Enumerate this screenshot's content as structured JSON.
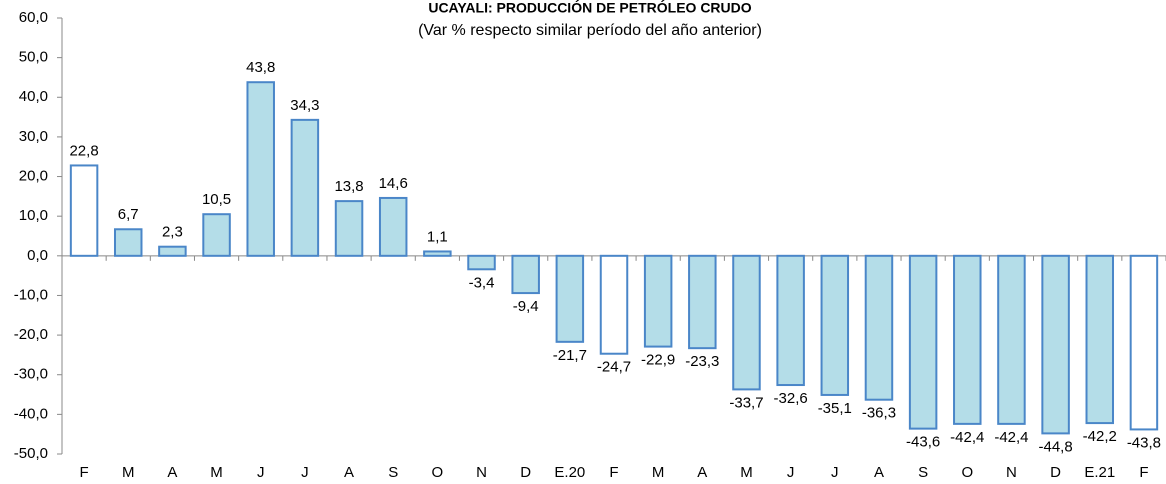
{
  "chart_data": {
    "type": "bar",
    "title": "UCAYALI: PRODUCCIÓN DE PETRÓLEO CRUDO",
    "subtitle": "(Var % respecto similar período del año anterior)",
    "categories": [
      "F",
      "M",
      "A",
      "M",
      "J",
      "J",
      "A",
      "S",
      "O",
      "N",
      "D",
      "E.20",
      "F",
      "M",
      "A",
      "M",
      "J",
      "J",
      "A",
      "S",
      "O",
      "N",
      "D",
      "E.21",
      "F"
    ],
    "values": [
      22.8,
      6.7,
      2.3,
      10.5,
      43.8,
      34.3,
      13.8,
      14.6,
      1.1,
      -3.4,
      -9.4,
      -21.7,
      -24.7,
      -22.9,
      -23.3,
      -33.7,
      -32.6,
      -35.1,
      -36.3,
      -43.6,
      -42.4,
      -42.4,
      -44.8,
      -42.2,
      -43.8
    ],
    "value_labels": [
      "22,8",
      "6,7",
      "2,3",
      "10,5",
      "43,8",
      "34,3",
      "13,8",
      "14,6",
      "1,1",
      "-3,4",
      "-9,4",
      "-21,7",
      "-24,7",
      "-22,9",
      "-23,3",
      "-33,7",
      "-32,6",
      "-35,1",
      "-36,3",
      "-43,6",
      "-42,4",
      "-42,4",
      "-44,8",
      "-42,2",
      "-43,8"
    ],
    "colors": [
      "#ffffff",
      "#b4dde8",
      "#b4dde8",
      "#b4dde8",
      "#b4dde8",
      "#b4dde8",
      "#b4dde8",
      "#b4dde8",
      "#b4dde8",
      "#b4dde8",
      "#b4dde8",
      "#b4dde8",
      "#ffffff",
      "#b4dde8",
      "#b4dde8",
      "#b4dde8",
      "#b4dde8",
      "#b4dde8",
      "#b4dde8",
      "#b4dde8",
      "#b4dde8",
      "#b4dde8",
      "#b4dde8",
      "#b4dde8",
      "#ffffff"
    ],
    "edge_color": "#4a86c8",
    "ylim": [
      -50,
      60
    ],
    "yticks": [
      {
        "value": -50,
        "label": "-50,0"
      },
      {
        "value": -40,
        "label": "-40,0"
      },
      {
        "value": -30,
        "label": "-30,0"
      },
      {
        "value": -20,
        "label": "-20,0"
      },
      {
        "value": -10,
        "label": "-10,0"
      },
      {
        "value": 0,
        "label": "0,0"
      },
      {
        "value": 10,
        "label": "10,0"
      },
      {
        "value": 20,
        "label": "20,0"
      },
      {
        "value": 30,
        "label": "30,0"
      },
      {
        "value": 40,
        "label": "40,0"
      },
      {
        "value": 50,
        "label": "50,0"
      },
      {
        "value": 60,
        "label": "60,0"
      }
    ],
    "grid": false
  }
}
